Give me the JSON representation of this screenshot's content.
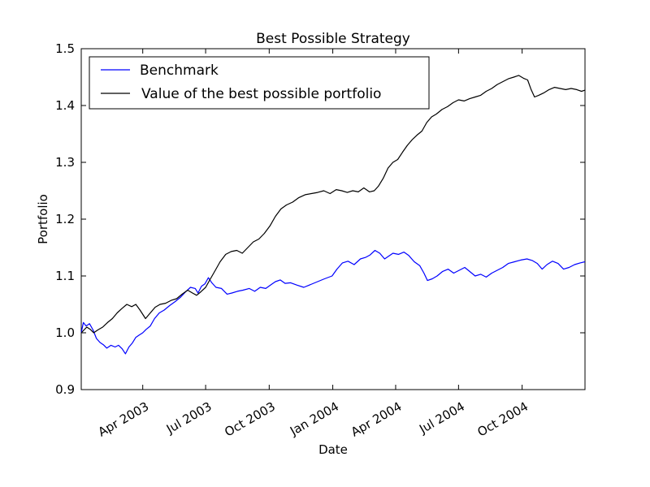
{
  "chart_data": {
    "type": "line",
    "title": "Best Possible Strategy",
    "xlabel": "Date",
    "ylabel": "Portfolio",
    "xlim": [
      "2003-01-02",
      "2004-12-31"
    ],
    "ylim": [
      0.9,
      1.5
    ],
    "yticks": [
      "0.9",
      "1.0",
      "1.1",
      "1.2",
      "1.3",
      "1.4",
      "1.5"
    ],
    "xticks": [
      {
        "date": "2003-04-01",
        "label": "Apr 2003"
      },
      {
        "date": "2003-07-01",
        "label": "Jul 2003"
      },
      {
        "date": "2003-10-01",
        "label": "Oct 2003"
      },
      {
        "date": "2004-01-01",
        "label": "Jan 2004"
      },
      {
        "date": "2004-04-01",
        "label": "Apr 2004"
      },
      {
        "date": "2004-07-01",
        "label": "Jul 2004"
      },
      {
        "date": "2004-10-01",
        "label": "Oct 2004"
      }
    ],
    "grid": false,
    "legend_position": "top-left",
    "series": [
      {
        "name": "Benchmark",
        "color": "#0000ff",
        "points": [
          [
            "2003-01-02",
            1.0
          ],
          [
            "2003-01-05",
            1.018
          ],
          [
            "2003-01-09",
            1.012
          ],
          [
            "2003-01-14",
            1.016
          ],
          [
            "2003-01-19",
            1.005
          ],
          [
            "2003-01-24",
            0.99
          ],
          [
            "2003-01-29",
            0.983
          ],
          [
            "2003-02-03",
            0.979
          ],
          [
            "2003-02-08",
            0.973
          ],
          [
            "2003-02-14",
            0.978
          ],
          [
            "2003-02-20",
            0.975
          ],
          [
            "2003-02-25",
            0.978
          ],
          [
            "2003-03-02",
            0.972
          ],
          [
            "2003-03-07",
            0.963
          ],
          [
            "2003-03-12",
            0.975
          ],
          [
            "2003-03-17",
            0.982
          ],
          [
            "2003-03-22",
            0.992
          ],
          [
            "2003-03-27",
            0.996
          ],
          [
            "2003-04-01",
            1.0
          ],
          [
            "2003-04-06",
            1.006
          ],
          [
            "2003-04-12",
            1.012
          ],
          [
            "2003-04-18",
            1.025
          ],
          [
            "2003-04-25",
            1.035
          ],
          [
            "2003-05-02",
            1.04
          ],
          [
            "2003-05-10",
            1.048
          ],
          [
            "2003-05-18",
            1.055
          ],
          [
            "2003-05-26",
            1.063
          ],
          [
            "2003-06-02",
            1.072
          ],
          [
            "2003-06-09",
            1.08
          ],
          [
            "2003-06-16",
            1.078
          ],
          [
            "2003-06-20",
            1.07
          ],
          [
            "2003-06-25",
            1.082
          ],
          [
            "2003-06-30",
            1.086
          ],
          [
            "2003-07-05",
            1.097
          ],
          [
            "2003-07-10",
            1.088
          ],
          [
            "2003-07-16",
            1.08
          ],
          [
            "2003-07-24",
            1.078
          ],
          [
            "2003-08-01",
            1.068
          ],
          [
            "2003-08-08",
            1.07
          ],
          [
            "2003-08-16",
            1.073
          ],
          [
            "2003-08-24",
            1.075
          ],
          [
            "2003-09-02",
            1.078
          ],
          [
            "2003-09-10",
            1.073
          ],
          [
            "2003-09-18",
            1.08
          ],
          [
            "2003-09-26",
            1.078
          ],
          [
            "2003-10-04",
            1.085
          ],
          [
            "2003-10-10",
            1.09
          ],
          [
            "2003-10-17",
            1.093
          ],
          [
            "2003-10-24",
            1.087
          ],
          [
            "2003-11-01",
            1.088
          ],
          [
            "2003-11-10",
            1.084
          ],
          [
            "2003-11-20",
            1.08
          ],
          [
            "2003-11-30",
            1.085
          ],
          [
            "2003-12-10",
            1.09
          ],
          [
            "2003-12-20",
            1.095
          ],
          [
            "2003-12-31",
            1.1
          ],
          [
            "2004-01-07",
            1.112
          ],
          [
            "2004-01-15",
            1.123
          ],
          [
            "2004-01-23",
            1.126
          ],
          [
            "2004-02-01",
            1.12
          ],
          [
            "2004-02-10",
            1.13
          ],
          [
            "2004-02-18",
            1.133
          ],
          [
            "2004-02-24",
            1.137
          ],
          [
            "2004-03-02",
            1.145
          ],
          [
            "2004-03-09",
            1.14
          ],
          [
            "2004-03-16",
            1.13
          ],
          [
            "2004-03-22",
            1.135
          ],
          [
            "2004-03-28",
            1.14
          ],
          [
            "2004-04-05",
            1.138
          ],
          [
            "2004-04-13",
            1.142
          ],
          [
            "2004-04-20",
            1.136
          ],
          [
            "2004-04-28",
            1.125
          ],
          [
            "2004-05-06",
            1.118
          ],
          [
            "2004-05-12",
            1.105
          ],
          [
            "2004-05-17",
            1.092
          ],
          [
            "2004-05-24",
            1.095
          ],
          [
            "2004-05-31",
            1.1
          ],
          [
            "2004-06-08",
            1.108
          ],
          [
            "2004-06-16",
            1.112
          ],
          [
            "2004-06-24",
            1.105
          ],
          [
            "2004-07-02",
            1.11
          ],
          [
            "2004-07-10",
            1.115
          ],
          [
            "2004-07-17",
            1.108
          ],
          [
            "2004-07-25",
            1.1
          ],
          [
            "2004-08-02",
            1.103
          ],
          [
            "2004-08-10",
            1.098
          ],
          [
            "2004-08-18",
            1.105
          ],
          [
            "2004-08-26",
            1.11
          ],
          [
            "2004-09-03",
            1.115
          ],
          [
            "2004-09-11",
            1.122
          ],
          [
            "2004-09-20",
            1.125
          ],
          [
            "2004-09-29",
            1.128
          ],
          [
            "2004-10-08",
            1.13
          ],
          [
            "2004-10-16",
            1.127
          ],
          [
            "2004-10-23",
            1.122
          ],
          [
            "2004-10-30",
            1.112
          ],
          [
            "2004-11-06",
            1.12
          ],
          [
            "2004-11-14",
            1.126
          ],
          [
            "2004-11-22",
            1.122
          ],
          [
            "2004-11-30",
            1.112
          ],
          [
            "2004-12-08",
            1.115
          ],
          [
            "2004-12-16",
            1.12
          ],
          [
            "2004-12-24",
            1.123
          ],
          [
            "2004-12-31",
            1.125
          ]
        ]
      },
      {
        "name": "Value of the best possible portfolio",
        "color": "#000000",
        "points": [
          [
            "2003-01-02",
            1.0
          ],
          [
            "2003-01-06",
            1.005
          ],
          [
            "2003-01-10",
            1.01
          ],
          [
            "2003-01-15",
            1.006
          ],
          [
            "2003-01-20",
            1.0
          ],
          [
            "2003-01-26",
            1.005
          ],
          [
            "2003-02-02",
            1.01
          ],
          [
            "2003-02-09",
            1.018
          ],
          [
            "2003-02-16",
            1.025
          ],
          [
            "2003-02-23",
            1.035
          ],
          [
            "2003-03-02",
            1.043
          ],
          [
            "2003-03-09",
            1.05
          ],
          [
            "2003-03-16",
            1.046
          ],
          [
            "2003-03-22",
            1.05
          ],
          [
            "2003-03-28",
            1.04
          ],
          [
            "2003-04-05",
            1.025
          ],
          [
            "2003-04-12",
            1.035
          ],
          [
            "2003-04-19",
            1.045
          ],
          [
            "2003-04-26",
            1.05
          ],
          [
            "2003-05-04",
            1.052
          ],
          [
            "2003-05-12",
            1.057
          ],
          [
            "2003-05-20",
            1.06
          ],
          [
            "2003-05-28",
            1.068
          ],
          [
            "2003-06-05",
            1.075
          ],
          [
            "2003-06-12",
            1.07
          ],
          [
            "2003-06-18",
            1.066
          ],
          [
            "2003-06-24",
            1.072
          ],
          [
            "2003-07-01",
            1.08
          ],
          [
            "2003-07-08",
            1.095
          ],
          [
            "2003-07-15",
            1.11
          ],
          [
            "2003-07-22",
            1.125
          ],
          [
            "2003-07-30",
            1.138
          ],
          [
            "2003-08-07",
            1.143
          ],
          [
            "2003-08-15",
            1.145
          ],
          [
            "2003-08-23",
            1.14
          ],
          [
            "2003-08-31",
            1.15
          ],
          [
            "2003-09-08",
            1.16
          ],
          [
            "2003-09-16",
            1.165
          ],
          [
            "2003-09-24",
            1.175
          ],
          [
            "2003-10-02",
            1.188
          ],
          [
            "2003-10-10",
            1.205
          ],
          [
            "2003-10-18",
            1.218
          ],
          [
            "2003-10-26",
            1.225
          ],
          [
            "2003-11-04",
            1.23
          ],
          [
            "2003-11-13",
            1.238
          ],
          [
            "2003-11-22",
            1.243
          ],
          [
            "2003-12-01",
            1.245
          ],
          [
            "2003-12-10",
            1.247
          ],
          [
            "2003-12-19",
            1.25
          ],
          [
            "2003-12-28",
            1.245
          ],
          [
            "2004-01-06",
            1.252
          ],
          [
            "2004-01-14",
            1.25
          ],
          [
            "2004-01-22",
            1.247
          ],
          [
            "2004-01-30",
            1.25
          ],
          [
            "2004-02-07",
            1.248
          ],
          [
            "2004-02-15",
            1.255
          ],
          [
            "2004-02-23",
            1.248
          ],
          [
            "2004-03-01",
            1.25
          ],
          [
            "2004-03-07",
            1.258
          ],
          [
            "2004-03-14",
            1.272
          ],
          [
            "2004-03-21",
            1.29
          ],
          [
            "2004-03-28",
            1.3
          ],
          [
            "2004-04-04",
            1.305
          ],
          [
            "2004-04-11",
            1.318
          ],
          [
            "2004-04-18",
            1.33
          ],
          [
            "2004-04-25",
            1.34
          ],
          [
            "2004-05-02",
            1.348
          ],
          [
            "2004-05-09",
            1.355
          ],
          [
            "2004-05-16",
            1.37
          ],
          [
            "2004-05-23",
            1.38
          ],
          [
            "2004-05-30",
            1.385
          ],
          [
            "2004-06-07",
            1.393
          ],
          [
            "2004-06-15",
            1.398
          ],
          [
            "2004-06-23",
            1.405
          ],
          [
            "2004-07-01",
            1.41
          ],
          [
            "2004-07-09",
            1.408
          ],
          [
            "2004-07-17",
            1.412
          ],
          [
            "2004-07-25",
            1.415
          ],
          [
            "2004-08-02",
            1.418
          ],
          [
            "2004-08-10",
            1.425
          ],
          [
            "2004-08-18",
            1.43
          ],
          [
            "2004-08-26",
            1.437
          ],
          [
            "2004-09-03",
            1.442
          ],
          [
            "2004-09-11",
            1.447
          ],
          [
            "2004-09-19",
            1.45
          ],
          [
            "2004-09-26",
            1.453
          ],
          [
            "2004-10-03",
            1.448
          ],
          [
            "2004-10-09",
            1.445
          ],
          [
            "2004-10-14",
            1.428
          ],
          [
            "2004-10-19",
            1.415
          ],
          [
            "2004-10-25",
            1.418
          ],
          [
            "2004-11-01",
            1.422
          ],
          [
            "2004-11-09",
            1.428
          ],
          [
            "2004-11-17",
            1.432
          ],
          [
            "2004-11-25",
            1.43
          ],
          [
            "2004-12-03",
            1.428
          ],
          [
            "2004-12-11",
            1.43
          ],
          [
            "2004-12-19",
            1.428
          ],
          [
            "2004-12-26",
            1.425
          ],
          [
            "2004-12-31",
            1.427
          ]
        ]
      }
    ]
  }
}
